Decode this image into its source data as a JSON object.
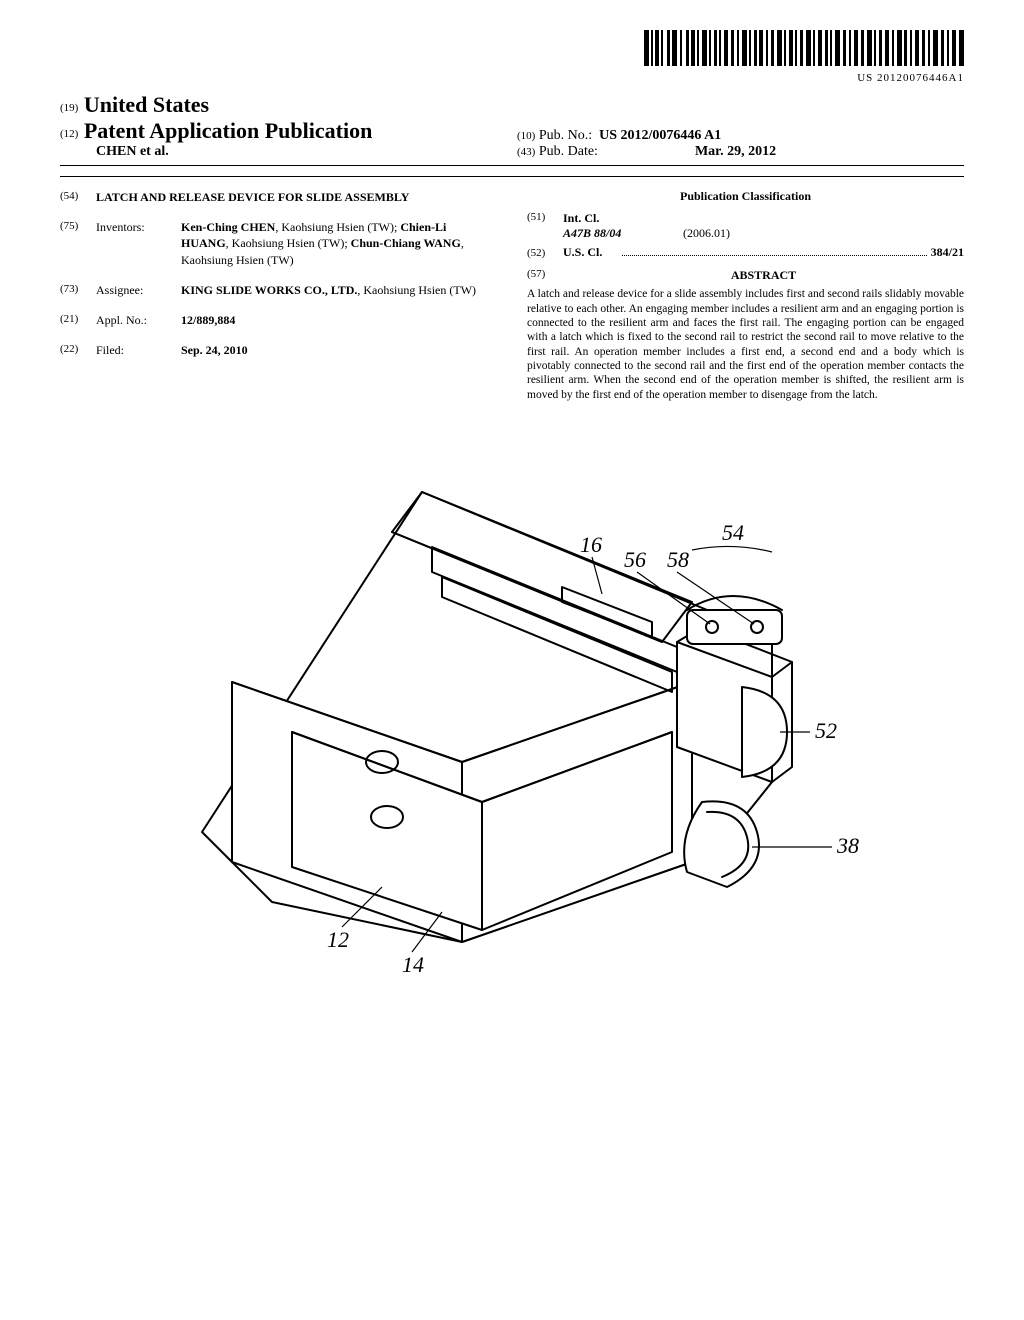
{
  "barcode_number": "US 20120076446A1",
  "header": {
    "line19_small": "(19)",
    "line19_text": "United States",
    "line12_small": "(12)",
    "line12_text": "Patent Application Publication",
    "authors_line": "CHEN et al.",
    "pub_no_small": "(10)",
    "pub_no_label": "Pub. No.:",
    "pub_no_value": "US 2012/0076446 A1",
    "pub_date_small": "(43)",
    "pub_date_label": "Pub. Date:",
    "pub_date_value": "Mar. 29, 2012"
  },
  "left": {
    "title_num": "(54)",
    "title": "LATCH AND RELEASE DEVICE FOR SLIDE ASSEMBLY",
    "inventors_num": "(75)",
    "inventors_label": "Inventors:",
    "inventors_html": "<span class=\"bold\">Ken-Ching CHEN</span>, Kaohsiung Hsien (TW); <span class=\"bold\">Chien-Li HUANG</span>, Kaohsiung Hsien (TW); <span class=\"bold\">Chun-Chiang WANG</span>, Kaohsiung Hsien (TW)",
    "assignee_num": "(73)",
    "assignee_label": "Assignee:",
    "assignee_html": "<span class=\"bold\">KING SLIDE WORKS CO., LTD.</span>, Kaohsiung Hsien (TW)",
    "appl_num": "(21)",
    "appl_label": "Appl. No.:",
    "appl_value": "12/889,884",
    "filed_num": "(22)",
    "filed_label": "Filed:",
    "filed_value": "Sep. 24, 2010"
  },
  "right": {
    "pub_class_heading": "Publication Classification",
    "intcl_num": "(51)",
    "intcl_label": "Int. Cl.",
    "intcl_code": "A47B 88/04",
    "intcl_year": "(2006.01)",
    "uscl_num": "(52)",
    "uscl_label": "U.S. Cl.",
    "uscl_value": "384/21",
    "abstract_num": "(57)",
    "abstract_heading": "ABSTRACT",
    "abstract_text": "A latch and release device for a slide assembly includes first and second rails slidably movable relative to each other. An engaging member includes a resilient arm and an engaging portion is connected to the resilient arm and faces the first rail. The engaging portion can be engaged with a latch which is fixed to the second rail to restrict the second rail to move relative to the first rail. An operation member includes a first end, a second end and a body which is pivotably connected to the second rail and the first end of the operation member contacts the resilient arm. When the second end of the operation member is shifted, the resilient arm is moved by the first end of the operation member to disengage from the latch."
  },
  "figure": {
    "labels": {
      "l12": "12",
      "l14": "14",
      "l16": "16",
      "l38": "38",
      "l52": "52",
      "l54": "54",
      "l56": "56",
      "l58": "58"
    }
  }
}
